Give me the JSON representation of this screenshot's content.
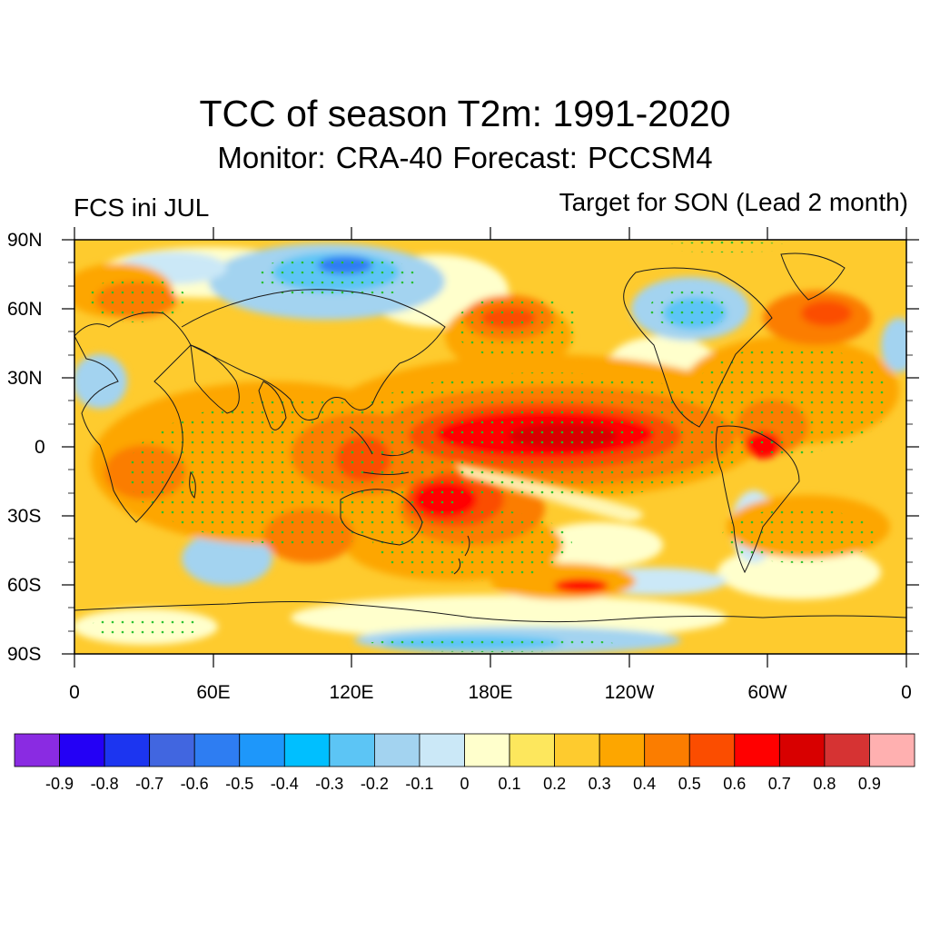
{
  "title": "TCC of season T2m: 1991-2020",
  "subtitle": "Monitor: CRA-40   Forecast: PCCSM4",
  "left_label": "FCS ini JUL",
  "right_label": "Target for SON (Lead 2 month)",
  "lat_labels": [
    "90N",
    "60N",
    "30N",
    "0",
    "30S",
    "60S",
    "90S"
  ],
  "lon_labels": [
    "0",
    "60E",
    "120E",
    "180E",
    "120W",
    "60W",
    "0"
  ],
  "colorbar": {
    "colors": [
      "#8a2be2",
      "#2400f5",
      "#1c35f0",
      "#4166e0",
      "#2e7df2",
      "#1e97fa",
      "#00bfff",
      "#5cc5f5",
      "#a3d3f0",
      "#cbe8f7",
      "#ffffcc",
      "#fde75d",
      "#fecb2e",
      "#fda600",
      "#fb7d00",
      "#fb4d00",
      "#ff0000",
      "#d80000",
      "#d63333",
      "#ffb0b0"
    ],
    "labels": [
      "-0.9",
      "-0.8",
      "-0.7",
      "-0.6",
      "-0.5",
      "-0.4",
      "-0.3",
      "-0.2",
      "-0.1",
      "0",
      "0.1",
      "0.2",
      "0.3",
      "0.4",
      "0.5",
      "0.6",
      "0.7",
      "0.8",
      "0.9"
    ]
  },
  "stipple_color": "#22c02a",
  "coastline_color": "#1a1a1a"
}
